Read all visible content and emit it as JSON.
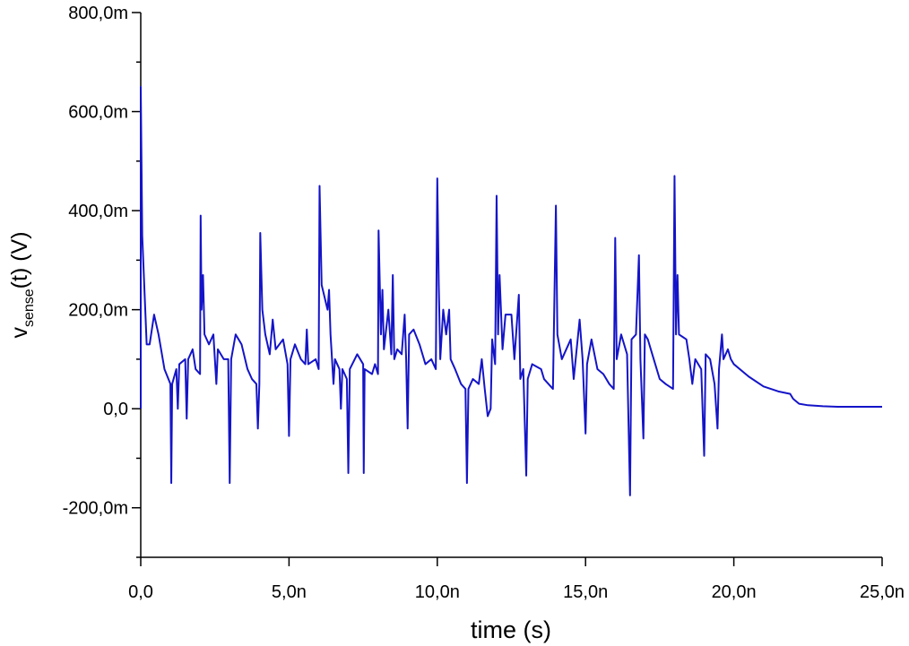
{
  "chart_data": {
    "type": "line",
    "xlabel": "time (s)",
    "ylabel_parts": [
      "v",
      "sense",
      "(t) (V)"
    ],
    "color": "#1414c8",
    "xlim": [
      0,
      2.5e-08
    ],
    "ylim": [
      -0.3,
      0.8
    ],
    "xticks": [
      {
        "value": 0,
        "label": "0,0"
      },
      {
        "value": 5e-09,
        "label": "5,0n"
      },
      {
        "value": 1e-08,
        "label": "10,0n"
      },
      {
        "value": 1.5e-08,
        "label": "15,0n"
      },
      {
        "value": 2e-08,
        "label": "20,0n"
      },
      {
        "value": 2.5e-08,
        "label": "25,0n"
      }
    ],
    "yticks": [
      {
        "value": -0.2,
        "label": "-200,0m"
      },
      {
        "value": 0,
        "label": "0,0"
      },
      {
        "value": 0.2,
        "label": "200,0m"
      },
      {
        "value": 0.4,
        "label": "400,0m"
      },
      {
        "value": 0.6,
        "label": "600,0m"
      },
      {
        "value": 0.8,
        "label": "800,0m"
      }
    ],
    "yminorticks": [
      -0.3,
      -0.1,
      0.1,
      0.3,
      0.5,
      0.7
    ],
    "x": [
      0,
      0,
      5e-11,
      2e-10,
      3e-10,
      4.5e-10,
      6e-10,
      8e-10,
      1e-09,
      1.03e-09,
      1.06e-09,
      1.2e-09,
      1.25e-09,
      1.3e-09,
      1.5e-09,
      1.55e-09,
      1.6e-09,
      1.75e-09,
      1.85e-09,
      2e-09,
      2.02e-09,
      2.05e-09,
      2.1e-09,
      2.15e-09,
      2.3e-09,
      2.45e-09,
      2.55e-09,
      2.6e-09,
      2.8e-09,
      2.95e-09,
      3e-09,
      3.05e-09,
      3.2e-09,
      3.4e-09,
      3.6e-09,
      3.75e-09,
      3.9e-09,
      3.95e-09,
      4e-09,
      4.03e-09,
      4.1e-09,
      4.2e-09,
      4.35e-09,
      4.45e-09,
      4.55e-09,
      4.8e-09,
      4.95e-09,
      5e-09,
      5.05e-09,
      5.2e-09,
      5.4e-09,
      5.55e-09,
      5.6e-09,
      5.65e-09,
      5.9e-09,
      6e-09,
      6.03e-09,
      6.1e-09,
      6.3e-09,
      6.35e-09,
      6.4e-09,
      6.5e-09,
      6.55e-09,
      6.7e-09,
      6.75e-09,
      6.8e-09,
      6.95e-09,
      7e-09,
      7.05e-09,
      7.3e-09,
      7.5e-09,
      7.52e-09,
      7.55e-09,
      7.8e-09,
      7.9e-09,
      8e-09,
      8.02e-09,
      8.1e-09,
      8.15e-09,
      8.2e-09,
      8.35e-09,
      8.45e-09,
      8.5e-09,
      8.55e-09,
      8.65e-09,
      8.8e-09,
      8.9e-09,
      8.95e-09,
      9e-09,
      9.05e-09,
      9.2e-09,
      9.4e-09,
      9.6e-09,
      9.8e-09,
      9.95e-09,
      1e-08,
      1.005e-08,
      1.01e-08,
      1.02e-08,
      1.03e-08,
      1.04e-08,
      1.045e-08,
      1.06e-08,
      1.08e-08,
      1.095e-08,
      1.1e-08,
      1.105e-08,
      1.12e-08,
      1.14e-08,
      1.15e-08,
      1.16e-08,
      1.17e-08,
      1.18e-08,
      1.185e-08,
      1.195e-08,
      1.2e-08,
      1.205e-08,
      1.21e-08,
      1.22e-08,
      1.23e-08,
      1.25e-08,
      1.26e-08,
      1.275e-08,
      1.28e-08,
      1.29e-08,
      1.3e-08,
      1.305e-08,
      1.32e-08,
      1.35e-08,
      1.36e-08,
      1.39e-08,
      1.4e-08,
      1.405e-08,
      1.42e-08,
      1.45e-08,
      1.46e-08,
      1.48e-08,
      1.49e-08,
      1.5e-08,
      1.505e-08,
      1.52e-08,
      1.54e-08,
      1.56e-08,
      1.58e-08,
      1.595e-08,
      1.6e-08,
      1.605e-08,
      1.62e-08,
      1.64e-08,
      1.65e-08,
      1.655e-08,
      1.67e-08,
      1.68e-08,
      1.685e-08,
      1.695e-08,
      1.7e-08,
      1.71e-08,
      1.73e-08,
      1.75e-08,
      1.77e-08,
      1.795e-08,
      1.8e-08,
      1.805e-08,
      1.81e-08,
      1.815e-08,
      1.84e-08,
      1.85e-08,
      1.86e-08,
      1.87e-08,
      1.89e-08,
      1.9e-08,
      1.905e-08,
      1.92e-08,
      1.935e-08,
      1.945e-08,
      1.95e-08,
      1.96e-08,
      1.965e-08,
      1.98e-08,
      1.99e-08,
      2e-08,
      2.05e-08,
      2.1e-08,
      2.15e-08,
      2.19e-08,
      2.2e-08,
      2.22e-08,
      2.25e-08,
      2.3e-08,
      2.35e-08,
      2.5e-08
    ],
    "values": [
      0,
      0.65,
      0.35,
      0.13,
      0.13,
      0.19,
      0.15,
      0.08,
      0.05,
      -0.15,
      0.05,
      0.08,
      0.0,
      0.09,
      0.1,
      -0.02,
      0.1,
      0.12,
      0.08,
      0.07,
      0.39,
      0.2,
      0.27,
      0.15,
      0.13,
      0.15,
      0.05,
      0.12,
      0.1,
      0.1,
      -0.15,
      0.1,
      0.15,
      0.13,
      0.08,
      0.06,
      0.05,
      -0.04,
      0.05,
      0.355,
      0.2,
      0.15,
      0.11,
      0.18,
      0.12,
      0.14,
      0.09,
      -0.055,
      0.1,
      0.13,
      0.1,
      0.09,
      0.16,
      0.09,
      0.1,
      0.08,
      0.45,
      0.25,
      0.2,
      0.24,
      0.15,
      0.05,
      0.1,
      0.08,
      0.0,
      0.08,
      0.06,
      -0.13,
      0.08,
      0.11,
      0.09,
      -0.13,
      0.08,
      0.07,
      0.09,
      0.07,
      0.36,
      0.15,
      0.24,
      0.12,
      0.2,
      0.11,
      0.27,
      0.1,
      0.12,
      0.11,
      0.19,
      0.1,
      -0.04,
      0.15,
      0.16,
      0.13,
      0.09,
      0.1,
      0.08,
      0.465,
      0.25,
      0.1,
      0.2,
      0.15,
      0.2,
      0.1,
      0.08,
      0.05,
      0.04,
      -0.15,
      0.04,
      0.06,
      0.05,
      0.1,
      0.04,
      -0.015,
      0.0,
      0.14,
      0.09,
      0.43,
      0.15,
      0.27,
      0.12,
      0.19,
      0.19,
      0.1,
      0.23,
      0.06,
      0.08,
      -0.135,
      0.06,
      0.09,
      0.08,
      0.06,
      0.04,
      0.41,
      0.15,
      0.1,
      0.14,
      0.06,
      0.18,
      0.1,
      -0.05,
      0.09,
      0.14,
      0.08,
      0.07,
      0.05,
      0.04,
      0.345,
      0.1,
      0.15,
      0.11,
      -0.175,
      0.14,
      0.15,
      0.31,
      0.1,
      -0.06,
      0.15,
      0.14,
      0.1,
      0.06,
      0.05,
      0.04,
      0.47,
      0.15,
      0.27,
      0.15,
      0.14,
      0.1,
      0.05,
      0.1,
      0.08,
      -0.095,
      0.11,
      0.1,
      0.05,
      -0.04,
      0.08,
      0.15,
      0.1,
      0.12,
      0.1,
      0.09,
      0.065,
      0.045,
      0.035,
      0.03,
      0.02,
      0.01,
      0.007,
      0.005,
      0.004,
      0.004
    ]
  }
}
